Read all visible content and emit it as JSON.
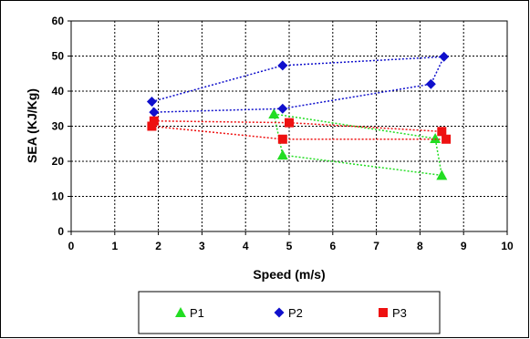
{
  "chart_data": {
    "type": "scatter",
    "xlabel": "Speed (m/s)",
    "ylabel": "SEA (KJ/Kg)",
    "xlim": [
      0,
      10
    ],
    "ylim": [
      0,
      60
    ],
    "x_ticks": [
      0,
      1,
      2,
      3,
      4,
      5,
      6,
      7,
      8,
      9,
      10
    ],
    "y_ticks": [
      0,
      10,
      20,
      30,
      40,
      50,
      60
    ],
    "grid": true,
    "legend_position": "bottom",
    "connect_points": "dotted",
    "series": [
      {
        "name": "P1",
        "marker": "triangle",
        "color": "#22dd22",
        "points": [
          {
            "x": 4.65,
            "y": 33.5
          },
          {
            "x": 8.35,
            "y": 26.5
          },
          {
            "x": 8.5,
            "y": 16
          },
          {
            "x": 4.85,
            "y": 21.8
          },
          {
            "x": 4.65,
            "y": 33.5
          }
        ]
      },
      {
        "name": "P2",
        "marker": "diamond",
        "color": "#1010cc",
        "points": [
          {
            "x": 1.85,
            "y": 37
          },
          {
            "x": 4.85,
            "y": 47.3
          },
          {
            "x": 8.55,
            "y": 49.8
          },
          {
            "x": 8.25,
            "y": 42
          },
          {
            "x": 4.85,
            "y": 35
          },
          {
            "x": 1.9,
            "y": 34
          },
          {
            "x": 1.85,
            "y": 37
          }
        ]
      },
      {
        "name": "P3",
        "marker": "square",
        "color": "#ee1111",
        "points": [
          {
            "x": 1.9,
            "y": 31.5
          },
          {
            "x": 5.0,
            "y": 31
          },
          {
            "x": 8.5,
            "y": 28.5
          },
          {
            "x": 8.6,
            "y": 26.3
          },
          {
            "x": 4.85,
            "y": 26.3
          },
          {
            "x": 1.85,
            "y": 30
          },
          {
            "x": 1.9,
            "y": 31.5
          }
        ]
      }
    ]
  }
}
